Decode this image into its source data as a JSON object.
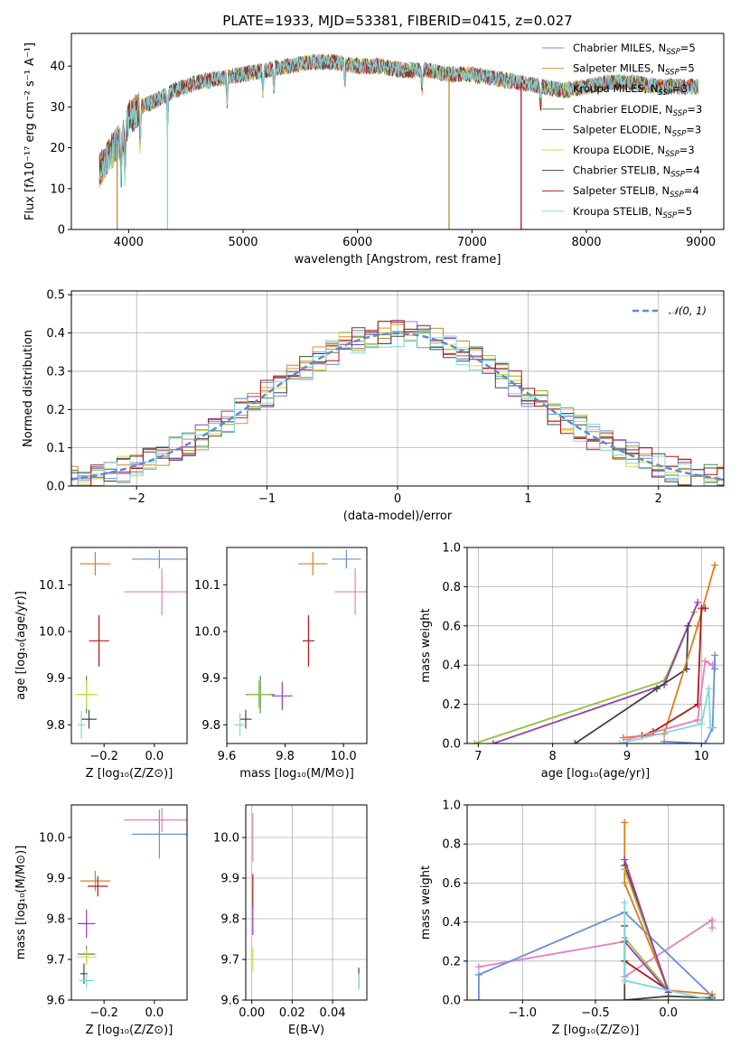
{
  "figure_title": "PLATE=1933, MJD=53381, FIBERID=0415, z=0.027",
  "colors": {
    "chabrier_miles": "#6a8fd8",
    "salpeter_miles": "#e6893a",
    "kroupa_miles": "#b8902c",
    "chabrier_elodie": "#4f8a4f",
    "salpeter_elodie": "#9b3ab5",
    "kroupa_elodie": "#d8de3a",
    "chabrier_stelib": "#444444",
    "salpeter_stelib": "#b01818",
    "kroupa_stelib": "#7fd8e0",
    "orange": "#e07b1a",
    "pink": "#e47fc0",
    "green": "#8fc43a",
    "purple": "#9b3ab5",
    "normal": "#5b8bd6"
  },
  "chart_data": [
    {
      "id": "spectrum",
      "type": "line",
      "title": "PLATE=1933, MJD=53381, FIBERID=0415, z=0.027",
      "xlabel": "wavelength [Angstrom, rest frame]",
      "ylabel": "Flux [fλ10⁻¹⁷ erg cm⁻² s⁻¹ A⁻¹]",
      "xlim": [
        3500,
        9200
      ],
      "ylim": [
        0,
        48
      ],
      "xticks": [
        4000,
        5000,
        6000,
        7000,
        8000,
        9000
      ],
      "yticks": [
        0,
        10,
        20,
        30,
        40
      ],
      "continuum": {
        "x": [
          3740,
          3800,
          3850,
          3900,
          3950,
          4000,
          4100,
          4200,
          4400,
          4600,
          4800,
          5000,
          5200,
          5400,
          5600,
          5800,
          6000,
          6200,
          6400,
          6600,
          6800,
          7000,
          7200,
          7400,
          7600,
          7800,
          8000,
          8200,
          8400,
          8600,
          8800,
          8980
        ],
        "y": [
          14,
          17,
          19,
          21,
          22,
          27,
          30,
          31,
          34,
          36,
          37,
          38,
          39,
          40,
          41,
          41,
          40,
          40,
          39,
          39,
          38,
          38,
          37,
          36,
          35,
          34,
          35,
          36,
          36,
          35,
          35,
          35
        ]
      },
      "series": [
        {
          "name": "Chabrier MILES, N_SSP=5",
          "label_main": "Chabrier MILES, N",
          "label_sub": "SSP",
          "label_end": "=5",
          "color": "#6a8fd8"
        },
        {
          "name": "Salpeter MILES, N_SSP=5",
          "label_main": "Salpeter MILES, N",
          "label_sub": "SSP",
          "label_end": "=5",
          "color": "#e6893a"
        },
        {
          "name": "Kroupa MILES, N_SSP=3",
          "label_main": "Kroupa MILES, N",
          "label_sub": "SSP",
          "label_end": "=3",
          "color": "#b8902c"
        },
        {
          "name": "Chabrier ELODIE, N_SSP=3",
          "label_main": "Chabrier ELODIE, N",
          "label_sub": "SSP",
          "label_end": "=3",
          "color": "#4f8a4f"
        },
        {
          "name": "Salpeter ELODIE, N_SSP=3",
          "label_main": "Salpeter ELODIE, N",
          "label_sub": "SSP",
          "label_end": "=3",
          "color": "#9b3ab5"
        },
        {
          "name": "Kroupa ELODIE, N_SSP=3",
          "label_main": "Kroupa ELODIE, N",
          "label_sub": "SSP",
          "label_end": "=3",
          "color": "#d8de3a"
        },
        {
          "name": "Chabrier STELIB, N_SSP=4",
          "label_main": "Chabrier STELIB, N",
          "label_sub": "SSP",
          "label_end": "=4",
          "color": "#444444"
        },
        {
          "name": "Salpeter STELIB, N_SSP=4",
          "label_main": "Salpeter STELIB, N",
          "label_sub": "SSP",
          "label_end": "=4",
          "color": "#b01818"
        },
        {
          "name": "Kroupa STELIB, N_SSP=5",
          "label_main": "Kroupa STELIB, N",
          "label_sub": "SSP",
          "label_end": "=5",
          "color": "#7fd8e0"
        }
      ],
      "legend_position": "upper right",
      "drops": [
        {
          "x": 3900,
          "color": "#b8902c"
        },
        {
          "x": 4340,
          "color": "#7fd8e0"
        },
        {
          "x": 6800,
          "color": "#b8902c"
        },
        {
          "x": 7430,
          "color": "#b01818"
        }
      ]
    },
    {
      "id": "residuals",
      "type": "step-histogram",
      "xlabel": "(data-model)/error",
      "ylabel": "Normed distribution",
      "xlim": [
        -2.5,
        2.5
      ],
      "ylim": [
        0,
        0.51
      ],
      "xticks": [
        -2,
        -1,
        0,
        1,
        2
      ],
      "yticks": [
        0.0,
        0.1,
        0.2,
        0.3,
        0.4,
        0.5
      ],
      "bin_width": 0.1,
      "grid": true,
      "legend": {
        "label": "𝒩(0, 1)",
        "position": "upper right",
        "color": "#5b8bd6",
        "style": "dashed"
      },
      "mean": 0,
      "sigma": 1
    },
    {
      "id": "age_vs_Z",
      "type": "errorbar",
      "xlabel": "Z [log₁₀(Z/Z⊙)]",
      "ylabel": "age  [log₁₀(age/yr)]",
      "xlim": [
        -0.33,
        0.13
      ],
      "ylim": [
        9.76,
        10.18
      ],
      "xticks": [
        -0.2,
        0.0
      ],
      "yticks": [
        9.8,
        9.9,
        10.0,
        10.1
      ],
      "points": [
        {
          "x": 0.02,
          "y": 10.155,
          "xerr": 0.11,
          "yerr": 0.02,
          "color": "#6a8fd8"
        },
        {
          "x": -0.235,
          "y": 10.145,
          "xerr": 0.06,
          "yerr": 0.025,
          "color": "#e07b1a"
        },
        {
          "x": 0.03,
          "y": 10.085,
          "xerr": 0.15,
          "yerr": 0.05,
          "color": "#e47fc0"
        },
        {
          "x": -0.22,
          "y": 9.98,
          "xerr": 0.04,
          "yerr": 0.055,
          "color": "#b01818"
        },
        {
          "x": -0.27,
          "y": 9.865,
          "xerr": 0.035,
          "yerr": 0.04,
          "color": "#4f8a4f"
        },
        {
          "x": -0.27,
          "y": 9.865,
          "xerr": 0.045,
          "yerr": 0.03,
          "color": "#d8de3a"
        },
        {
          "x": -0.26,
          "y": 9.812,
          "xerr": 0.03,
          "yerr": 0.02,
          "color": "#444444"
        },
        {
          "x": -0.29,
          "y": 9.8,
          "xerr": 0.015,
          "yerr": 0.03,
          "color": "#7fd8e0"
        }
      ]
    },
    {
      "id": "age_vs_mass",
      "type": "errorbar",
      "xlabel": "mass [log₁₀(M/M⊙)]",
      "ylabel": "",
      "xlim": [
        9.6,
        10.08
      ],
      "ylim": [
        9.76,
        10.18
      ],
      "xticks": [
        9.6,
        9.8,
        10.0
      ],
      "yticks": [
        9.8,
        9.9,
        10.0,
        10.1
      ],
      "points": [
        {
          "x": 10.01,
          "y": 10.155,
          "xerr": 0.05,
          "yerr": 0.02,
          "color": "#6a8fd8"
        },
        {
          "x": 9.895,
          "y": 10.145,
          "xerr": 0.05,
          "yerr": 0.025,
          "color": "#e07b1a"
        },
        {
          "x": 10.04,
          "y": 10.085,
          "xerr": 0.07,
          "yerr": 0.05,
          "color": "#e47fc0"
        },
        {
          "x": 9.88,
          "y": 9.98,
          "xerr": 0.02,
          "yerr": 0.055,
          "color": "#b01818"
        },
        {
          "x": 9.715,
          "y": 9.865,
          "xerr": 0.05,
          "yerr": 0.04,
          "color": "#4f8a4f"
        },
        {
          "x": 9.71,
          "y": 9.865,
          "xerr": 0.04,
          "yerr": 0.03,
          "color": "#8fc43a"
        },
        {
          "x": 9.79,
          "y": 9.862,
          "xerr": 0.035,
          "yerr": 0.03,
          "color": "#9b3ab5"
        },
        {
          "x": 9.665,
          "y": 9.812,
          "xerr": 0.02,
          "yerr": 0.02,
          "color": "#444444"
        },
        {
          "x": 9.645,
          "y": 9.8,
          "xerr": 0.02,
          "yerr": 0.025,
          "color": "#7fd8e0"
        }
      ]
    },
    {
      "id": "massweight_vs_age",
      "type": "line",
      "xlabel": "age  [log₁₀(age/yr)]",
      "ylabel": "mass weight",
      "xlim": [
        6.85,
        10.3
      ],
      "ylim": [
        0,
        1.0
      ],
      "xticks": [
        7,
        8,
        9,
        10
      ],
      "yticks": [
        0.0,
        0.2,
        0.4,
        0.6,
        0.8,
        1.0
      ],
      "grid": true,
      "series": [
        {
          "color": "#8fc43a",
          "points": [
            [
              6.95,
              0.0
            ],
            [
              9.5,
              0.32
            ],
            [
              9.9,
              0.67
            ]
          ]
        },
        {
          "color": "#9b3ab5",
          "points": [
            [
              7.2,
              0.0
            ],
            [
              9.5,
              0.3
            ],
            [
              9.95,
              0.72
            ]
          ]
        },
        {
          "color": "#444444",
          "points": [
            [
              8.3,
              0.0
            ],
            [
              9.4,
              0.28
            ],
            [
              9.8,
              0.38
            ],
            [
              9.82,
              0.6
            ]
          ]
        },
        {
          "color": "#e07b1a",
          "points": [
            [
              8.95,
              0.03
            ],
            [
              9.5,
              0.05
            ],
            [
              9.95,
              0.6
            ],
            [
              10.18,
              0.91
            ]
          ]
        },
        {
          "color": "#b01818",
          "points": [
            [
              9.2,
              0.04
            ],
            [
              9.35,
              0.06
            ],
            [
              9.95,
              0.2
            ],
            [
              10.0,
              0.69
            ],
            [
              10.05,
              0.69
            ]
          ]
        },
        {
          "color": "#e47fc0",
          "points": [
            [
              9.0,
              0.02
            ],
            [
              9.95,
              0.12
            ],
            [
              10.05,
              0.42
            ],
            [
              10.15,
              0.4
            ]
          ]
        },
        {
          "color": "#6a8fd8",
          "points": [
            [
              9.5,
              0.01
            ],
            [
              10.05,
              0.0
            ],
            [
              10.15,
              0.08
            ],
            [
              10.18,
              0.45
            ],
            [
              10.18,
              0.38
            ]
          ]
        },
        {
          "color": "#7fd8e0",
          "points": [
            [
              8.9,
              0.0
            ],
            [
              10.0,
              0.1
            ],
            [
              10.1,
              0.28
            ],
            [
              10.12,
              0.08
            ]
          ]
        }
      ]
    },
    {
      "id": "mass_vs_Z",
      "type": "errorbar",
      "xlabel": "Z [log₁₀(Z/Z⊙)]",
      "ylabel": "mass [log₁₀(M/M⊙)]",
      "xlim": [
        -0.33,
        0.13
      ],
      "ylim": [
        9.6,
        10.08
      ],
      "xticks": [
        -0.2,
        0.0
      ],
      "yticks": [
        9.6,
        9.7,
        9.8,
        9.9,
        10.0
      ],
      "points": [
        {
          "x": 0.02,
          "y": 10.008,
          "xerr": 0.11,
          "yerr": 0.06,
          "color": "#6a8fd8"
        },
        {
          "x": 0.03,
          "y": 10.043,
          "xerr": 0.15,
          "yerr": 0.03,
          "color": "#e47fc0"
        },
        {
          "x": -0.235,
          "y": 9.893,
          "xerr": 0.06,
          "yerr": 0.025,
          "color": "#e07b1a"
        },
        {
          "x": -0.225,
          "y": 9.88,
          "xerr": 0.04,
          "yerr": 0.025,
          "color": "#b01818"
        },
        {
          "x": -0.27,
          "y": 9.788,
          "xerr": 0.035,
          "yerr": 0.035,
          "color": "#9b3ab5"
        },
        {
          "x": -0.27,
          "y": 9.713,
          "xerr": 0.035,
          "yerr": 0.02,
          "color": "#4f8a4f"
        },
        {
          "x": -0.27,
          "y": 9.706,
          "xerr": 0.04,
          "yerr": 0.02,
          "color": "#d8de3a"
        },
        {
          "x": -0.28,
          "y": 9.665,
          "xerr": 0.015,
          "yerr": 0.025,
          "color": "#444444"
        },
        {
          "x": -0.27,
          "y": 9.648,
          "xerr": 0.03,
          "yerr": 0.02,
          "color": "#7fd8e0"
        }
      ]
    },
    {
      "id": "mass_vs_EBV",
      "type": "errorbar",
      "xlabel": "E(B-V)",
      "ylabel": "",
      "xlim": [
        -0.003,
        0.057
      ],
      "ylim": [
        9.6,
        10.08
      ],
      "xticks": [
        0.0,
        0.02,
        0.04
      ],
      "yticks": [
        9.6,
        9.7,
        9.8,
        9.9,
        10.0
      ],
      "grid": true,
      "points": [
        {
          "x": 0.0005,
          "y": 10.0,
          "xerr": 0,
          "yerr": 0.06,
          "color": "#e47fc0"
        },
        {
          "x": 0.0005,
          "y": 9.87,
          "xerr": 0,
          "yerr": 0.04,
          "color": "#b01818"
        },
        {
          "x": 0.0005,
          "y": 9.8,
          "xerr": 0,
          "yerr": 0.04,
          "color": "#9b3ab5"
        },
        {
          "x": 0.0005,
          "y": 9.7,
          "xerr": 0,
          "yerr": 0.03,
          "color": "#d8de3a"
        },
        {
          "x": 0.053,
          "y": 9.655,
          "xerr": 0,
          "yerr": 0.025,
          "color": "#444444"
        },
        {
          "x": 0.053,
          "y": 9.645,
          "xerr": 0,
          "yerr": 0.02,
          "color": "#7fd8e0"
        }
      ]
    },
    {
      "id": "massweight_vs_Z",
      "type": "line",
      "xlabel": "Z [log₁₀(Z/Z⊙)]",
      "ylabel": "mass weight",
      "xlim": [
        -1.38,
        0.38
      ],
      "ylim": [
        0,
        1.0
      ],
      "xticks": [
        -1.0,
        -0.5,
        0.0
      ],
      "yticks": [
        0.0,
        0.2,
        0.4,
        0.6,
        0.8,
        1.0
      ],
      "grid": true,
      "series": [
        {
          "color": "#e47fc0",
          "points": [
            [
              -1.3,
              0.17
            ],
            [
              -0.3,
              0.3
            ],
            [
              -0.3,
              0.12
            ],
            [
              0.3,
              0.41
            ],
            [
              0.3,
              0.37
            ]
          ]
        },
        {
          "color": "#6a8fd8",
          "points": [
            [
              -1.3,
              0.0
            ],
            [
              -1.3,
              0.13
            ],
            [
              -0.3,
              0.45
            ],
            [
              0.3,
              0.02
            ]
          ]
        },
        {
          "color": "#e07b1a",
          "points": [
            [
              -0.3,
              0.91
            ],
            [
              -0.3,
              0.6
            ],
            [
              0.0,
              0.05
            ],
            [
              0.3,
              0.03
            ]
          ]
        },
        {
          "color": "#b01818",
          "points": [
            [
              -0.3,
              0.69
            ],
            [
              0.0,
              0.05
            ],
            [
              -0.3,
              0.2
            ]
          ]
        },
        {
          "color": "#8fc43a",
          "points": [
            [
              -0.3,
              0.67
            ],
            [
              0.0,
              0.05
            ],
            [
              -0.3,
              0.32
            ]
          ]
        },
        {
          "color": "#9b3ab5",
          "points": [
            [
              -0.3,
              0.72
            ],
            [
              0.0,
              0.04
            ],
            [
              -0.3,
              0.3
            ]
          ]
        },
        {
          "color": "#444444",
          "points": [
            [
              -0.3,
              0.38
            ],
            [
              -0.3,
              0.0
            ],
            [
              0.0,
              0.02
            ],
            [
              0.3,
              0.01
            ]
          ]
        },
        {
          "color": "#7fd8e0",
          "points": [
            [
              -0.3,
              0.5
            ],
            [
              -0.3,
              0.1
            ],
            [
              0.3,
              0.0
            ]
          ]
        }
      ]
    }
  ]
}
